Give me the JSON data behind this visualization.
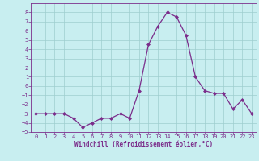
{
  "x": [
    0,
    1,
    2,
    3,
    4,
    5,
    6,
    7,
    8,
    9,
    10,
    11,
    12,
    13,
    14,
    15,
    16,
    17,
    18,
    19,
    20,
    21,
    22,
    23
  ],
  "y": [
    -3,
    -3,
    -3,
    -3,
    -3.5,
    -4.5,
    -4,
    -3.5,
    -3.5,
    -3,
    -3.5,
    -0.5,
    4.5,
    6.5,
    8,
    7.5,
    5.5,
    1,
    -0.5,
    -0.8,
    -0.8,
    -2.5,
    -1.5,
    -3
  ],
  "line_color": "#7B2D8B",
  "marker": "D",
  "markersize": 2.0,
  "linewidth": 0.9,
  "bg_color": "#C8EEF0",
  "grid_color": "#9ECECE",
  "xlabel": "Windchill (Refroidissement éolien,°C)",
  "xlabel_fontsize": 5.5,
  "tick_fontsize": 5.0,
  "ylim": [
    -5,
    9
  ],
  "xlim": [
    -0.5,
    23.5
  ],
  "yticks": [
    -5,
    -4,
    -3,
    -2,
    -1,
    0,
    1,
    2,
    3,
    4,
    5,
    6,
    7,
    8
  ],
  "xticks": [
    0,
    1,
    2,
    3,
    4,
    5,
    6,
    7,
    8,
    9,
    10,
    11,
    12,
    13,
    14,
    15,
    16,
    17,
    18,
    19,
    20,
    21,
    22,
    23
  ]
}
